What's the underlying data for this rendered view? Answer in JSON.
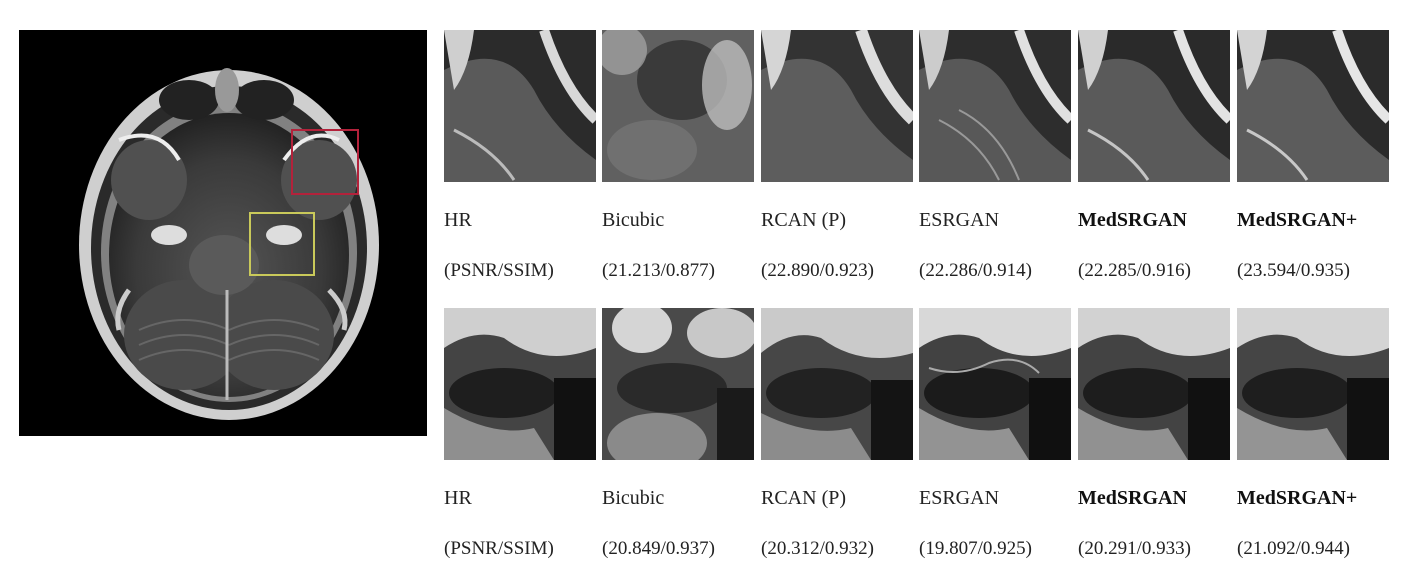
{
  "overview": {
    "roi_boxes": [
      {
        "name": "red",
        "color": "#b3223b"
      },
      {
        "name": "yellow",
        "color": "#c9c95a"
      }
    ]
  },
  "rows": [
    {
      "methods": [
        "HR",
        "Bicubic",
        "RCAN (P)",
        "ESRGAN",
        "MedSRGAN",
        "MedSRGAN+"
      ],
      "metrics": [
        "(PSNR/SSIM)",
        "(21.213/0.877)",
        "(22.890/0.923)",
        "(22.286/0.914)",
        "(22.285/0.916)",
        "(23.594/0.935)"
      ]
    },
    {
      "methods": [
        "HR",
        "Bicubic",
        "RCAN (P)",
        "ESRGAN",
        "MedSRGAN",
        "MedSRGAN+"
      ],
      "metrics": [
        "(PSNR/SSIM)",
        "(20.849/0.937)",
        "(20.312/0.932)",
        "(19.807/0.925)",
        "(20.291/0.933)",
        "(21.092/0.944)"
      ]
    }
  ],
  "bold_methods": [
    "MedSRGAN",
    "MedSRGAN+"
  ]
}
